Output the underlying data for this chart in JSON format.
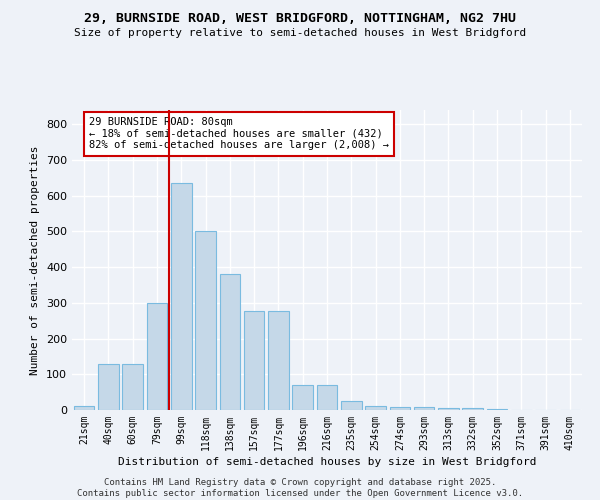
{
  "title": "29, BURNSIDE ROAD, WEST BRIDGFORD, NOTTINGHAM, NG2 7HU",
  "subtitle": "Size of property relative to semi-detached houses in West Bridgford",
  "xlabel": "Distribution of semi-detached houses by size in West Bridgford",
  "ylabel": "Number of semi-detached properties",
  "categories": [
    "21sqm",
    "40sqm",
    "60sqm",
    "79sqm",
    "99sqm",
    "118sqm",
    "138sqm",
    "157sqm",
    "177sqm",
    "196sqm",
    "216sqm",
    "235sqm",
    "254sqm",
    "274sqm",
    "293sqm",
    "313sqm",
    "332sqm",
    "352sqm",
    "371sqm",
    "391sqm",
    "410sqm"
  ],
  "values": [
    10,
    128,
    128,
    300,
    635,
    500,
    382,
    278,
    278,
    70,
    70,
    25,
    12,
    8,
    8,
    5,
    5,
    2,
    0,
    0,
    0
  ],
  "bar_color": "#c5d8e8",
  "bar_edge_color": "#7abbe0",
  "annotation_text": "29 BURNSIDE ROAD: 80sqm\n← 18% of semi-detached houses are smaller (432)\n82% of semi-detached houses are larger (2,008) →",
  "annotation_box_color": "#ffffff",
  "annotation_box_edge_color": "#cc0000",
  "vline_color": "#cc0000",
  "vline_x": 3.5,
  "ylim": [
    0,
    840
  ],
  "yticks": [
    0,
    100,
    200,
    300,
    400,
    500,
    600,
    700,
    800
  ],
  "background_color": "#eef2f8",
  "grid_color": "#ffffff",
  "footer1": "Contains HM Land Registry data © Crown copyright and database right 2025.",
  "footer2": "Contains public sector information licensed under the Open Government Licence v3.0."
}
